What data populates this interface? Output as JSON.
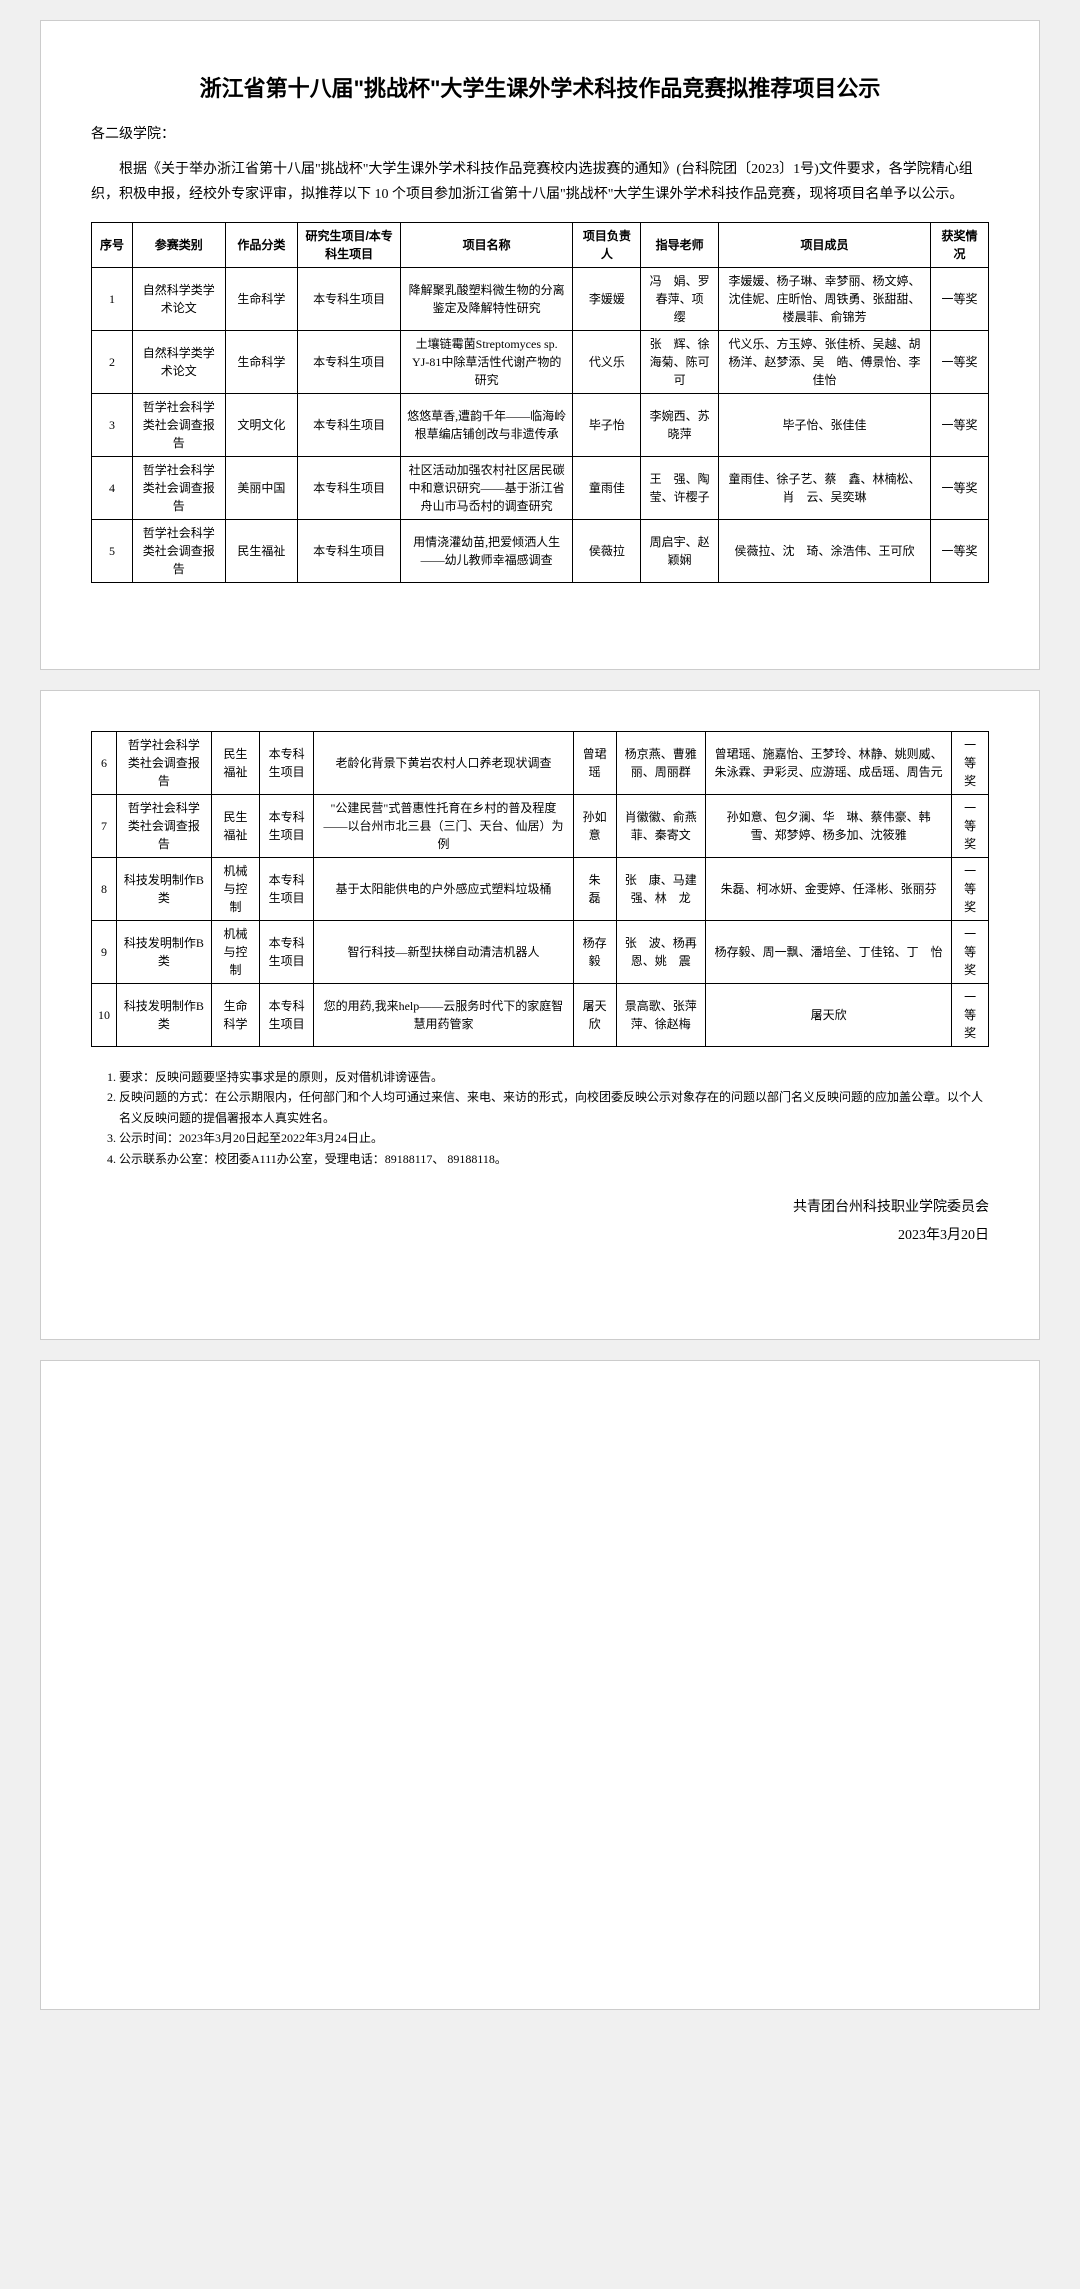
{
  "title": "浙江省第十八届\"挑战杯\"大学生课外学术科技作品竞赛拟推荐项目公示",
  "salutation": "各二级学院：",
  "intro": "根据《关于举办浙江省第十八届\"挑战杯\"大学生课外学术科技作品竞赛校内选拔赛的通知》(台科院团〔2023〕1号)文件要求，各学院精心组织，积极申报，经校外专家评审，拟推荐以下 10 个项目参加浙江省第十八届\"挑战杯\"大学生课外学术科技作品竞赛，现将项目名单予以公示。",
  "headers": {
    "seq": "序号",
    "category": "参赛类别",
    "subject": "作品分类",
    "type": "研究生项目/本专科生项目",
    "name": "项目名称",
    "leader": "项目负责人",
    "advisor": "指导老师",
    "members": "项目成员",
    "award": "获奖情况"
  },
  "rows1": [
    {
      "seq": "1",
      "category": "自然科学类学术论文",
      "subject": "生命科学",
      "type": "本专科生项目",
      "name": "降解聚乳酸塑料微生物的分离鉴定及降解特性研究",
      "leader": "李媛媛",
      "advisor": "冯　娟、罗春萍、项　缨",
      "members": "李媛媛、杨子琳、幸梦丽、杨文婷、沈佳妮、庄昕怡、周铁勇、张甜甜、楼晨菲、俞锦芳",
      "award": "一等奖"
    },
    {
      "seq": "2",
      "category": "自然科学类学术论文",
      "subject": "生命科学",
      "type": "本专科生项目",
      "name": "土壤链霉菌Streptomyces sp. YJ-81中除草活性代谢产物的研究",
      "leader": "代义乐",
      "advisor": "张　辉、徐海菊、陈可可",
      "members": "代义乐、方玉婷、张佳桥、吴越、胡杨洋、赵梦添、吴　皓、傅景怡、李佳怡",
      "award": "一等奖"
    },
    {
      "seq": "3",
      "category": "哲学社会科学类社会调查报告",
      "subject": "文明文化",
      "type": "本专科生项目",
      "name": "悠悠草香,遭韵千年——临海岭根草编店铺创改与非遗传承",
      "leader": "毕子怡",
      "advisor": "李婉西、苏晓萍",
      "members": "毕子怡、张佳佳",
      "award": "一等奖"
    },
    {
      "seq": "4",
      "category": "哲学社会科学类社会调查报告",
      "subject": "美丽中国",
      "type": "本专科生项目",
      "name": "社区活动加强农村社区居民碳中和意识研究——基于浙江省舟山市马岙村的调查研究",
      "leader": "童雨佳",
      "advisor": "王　强、陶　莹、许樱子",
      "members": "童雨佳、徐子艺、蔡　鑫、林楠松、肖　云、吴奕琳",
      "award": "一等奖"
    },
    {
      "seq": "5",
      "category": "哲学社会科学类社会调查报告",
      "subject": "民生福祉",
      "type": "本专科生项目",
      "name": "用情浇灌幼苗,把爱倾洒人生——幼儿教师幸福感调查",
      "leader": "侯薇拉",
      "advisor": "周启宇、赵颖娴",
      "members": "侯薇拉、沈　琦、涂浩伟、王可欣",
      "award": "一等奖"
    }
  ],
  "rows2": [
    {
      "seq": "6",
      "category": "哲学社会科学类社会调查报告",
      "subject": "民生福祉",
      "type": "本专科生项目",
      "name": "老龄化背景下黄岩农村人口养老现状调查",
      "leader": "曾珺瑶",
      "advisor": "杨京燕、曹雅丽、周丽群",
      "members": "曾珺瑶、施嘉怡、王梦玲、林静、姚则威、朱泳霖、尹彩灵、应游瑶、成岳瑶、周告元",
      "award": "一等奖"
    },
    {
      "seq": "7",
      "category": "哲学社会科学类社会调查报告",
      "subject": "民生福祉",
      "type": "本专科生项目",
      "name": "\"公建民营\"式普惠性托育在乡村的普及程度——以台州市北三县（三门、天台、仙居）为例",
      "leader": "孙如意",
      "advisor": "肖徽徽、俞燕菲、秦寄文",
      "members": "孙如意、包夕澜、华　琳、蔡伟豪、韩　雪、郑梦婷、杨多加、沈筱雅",
      "award": "一等奖"
    },
    {
      "seq": "8",
      "category": "科技发明制作B类",
      "subject": "机械与控制",
      "type": "本专科生项目",
      "name": "基于太阳能供电的户外感应式塑料垃圾桶",
      "leader": "朱　磊",
      "advisor": "张　康、马建强、林　龙",
      "members": "朱磊、柯冰妍、金雯婷、任泽彬、张丽芬",
      "award": "一等奖"
    },
    {
      "seq": "9",
      "category": "科技发明制作B类",
      "subject": "机械与控制",
      "type": "本专科生项目",
      "name": "智行科技—新型扶梯自动清洁机器人",
      "leader": "杨存毅",
      "advisor": "张　波、杨再恩、姚　震",
      "members": "杨存毅、周一飘、潘培垒、丁佳铭、丁　怡",
      "award": "一等奖"
    },
    {
      "seq": "10",
      "category": "科技发明制作B类",
      "subject": "生命科学",
      "type": "本专科生项目",
      "name": "您的用药,我来help——云服务时代下的家庭智慧用药管家",
      "leader": "屠天欣",
      "advisor": "景高歌、张萍萍、徐赵梅",
      "members": "屠天欣",
      "award": "一等奖"
    }
  ],
  "notes": [
    "要求：反映问题要坚持实事求是的原则，反对借机诽谤诬告。",
    "反映问题的方式：在公示期限内，任何部门和个人均可通过来信、来电、来访的形式，向校团委反映公示对象存在的问题以部门名义反映问题的应加盖公章。以个人名义反映问题的提倡署报本人真实姓名。",
    "公示时间：2023年3月20日起至2022年3月24日止。",
    "公示联系办公室：校团委A111办公室，受理电话：89188117、 89188118。"
  ],
  "signer": "共青团台州科技职业学院委员会",
  "date": "2023年3月20日"
}
